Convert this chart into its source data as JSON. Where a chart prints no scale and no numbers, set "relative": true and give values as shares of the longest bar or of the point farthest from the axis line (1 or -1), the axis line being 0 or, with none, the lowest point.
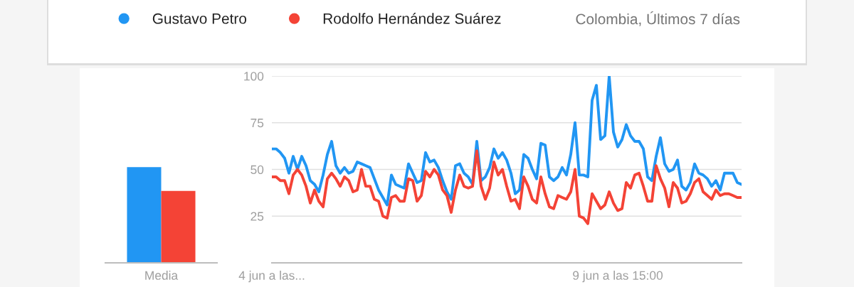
{
  "chart_data": [
    {
      "type": "bar",
      "relative": true,
      "categories": [
        "Media"
      ],
      "series": [
        {
          "color": "#2196f3",
          "values": [
            1
          ]
        },
        {
          "color": "#f44336",
          "values": [
            0.75
          ]
        }
      ]
    },
    {
      "type": "line",
      "ylim": [
        0,
        100
      ],
      "yticks": [
        25,
        50,
        75,
        100
      ],
      "grid": "y",
      "legend": "top",
      "annotations": [
        "Colombia, Últimos 7 días"
      ],
      "categories": [
        "4 jun a las...",
        null,
        null,
        null,
        null,
        null,
        null,
        null,
        null,
        null,
        null,
        null,
        null,
        null,
        null,
        null,
        null,
        null,
        null,
        null,
        null,
        null,
        null,
        null,
        null,
        null,
        null,
        null,
        null,
        null,
        null,
        null,
        null,
        null,
        null,
        null,
        null,
        null,
        null,
        null,
        null,
        null,
        null,
        null,
        null,
        null,
        null,
        null,
        null,
        null,
        null,
        null,
        null,
        null,
        null,
        null,
        null,
        null,
        null,
        null,
        null,
        null,
        null,
        null,
        null,
        null,
        null,
        null,
        null,
        null,
        null,
        null,
        null,
        null,
        null,
        null,
        null,
        null,
        null,
        null,
        null,
        "9 jun a las 15:00",
        null,
        null,
        null,
        null,
        null,
        null,
        null,
        null,
        null,
        null,
        null,
        null,
        null,
        null,
        null,
        null,
        null,
        null,
        null,
        null,
        null,
        null,
        null,
        null,
        null,
        null,
        null,
        null,
        null
      ],
      "series": [
        {
          "name": "Gustavo Petro",
          "color": "#2196f3",
          "values": [
            61,
            61,
            59,
            56,
            48,
            57,
            50,
            57,
            52,
            44,
            42,
            38,
            47,
            58,
            65,
            52,
            48,
            51,
            48,
            49,
            54,
            53,
            52,
            51,
            45,
            39,
            35,
            31,
            47,
            42,
            41,
            40,
            53,
            48,
            43,
            44,
            59,
            54,
            55,
            51,
            44,
            38,
            34,
            52,
            53,
            48,
            46,
            42,
            65,
            44,
            46,
            51,
            61,
            56,
            59,
            55,
            48,
            37,
            39,
            58,
            56,
            50,
            45,
            64,
            63,
            46,
            44,
            46,
            51,
            47,
            58,
            75,
            47,
            47,
            46,
            87,
            95,
            66,
            68,
            100,
            70,
            62,
            66,
            74,
            68,
            65,
            65,
            61,
            46,
            44,
            57,
            67,
            53,
            49,
            50,
            55,
            41,
            39,
            43,
            53,
            48,
            47,
            45,
            41,
            44,
            39,
            48,
            48,
            48,
            43,
            42
          ]
        },
        {
          "name": "Rodolfo Hernández Suárez",
          "color": "#f44336",
          "values": [
            46,
            46,
            44,
            44,
            37,
            47,
            50,
            47,
            41,
            32,
            39,
            33,
            30,
            45,
            48,
            45,
            41,
            46,
            44,
            38,
            39,
            50,
            41,
            41,
            34,
            33,
            25,
            24,
            35,
            36,
            33,
            33,
            45,
            44,
            33,
            36,
            49,
            46,
            50,
            47,
            39,
            36,
            27,
            39,
            47,
            41,
            40,
            41,
            60,
            41,
            34,
            40,
            54,
            47,
            50,
            41,
            33,
            34,
            29,
            46,
            41,
            34,
            32,
            46,
            37,
            30,
            29,
            36,
            35,
            34,
            38,
            50,
            25,
            24,
            21,
            37,
            33,
            29,
            31,
            38,
            32,
            28,
            29,
            43,
            40,
            47,
            48,
            41,
            33,
            33,
            52,
            45,
            40,
            30,
            43,
            40,
            32,
            33,
            37,
            43,
            45,
            38,
            36,
            34,
            39,
            36,
            37,
            37,
            36,
            35,
            35
          ]
        }
      ]
    }
  ]
}
